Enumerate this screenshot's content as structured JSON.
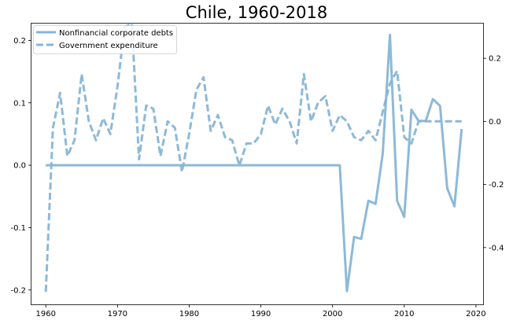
{
  "chart_data": {
    "type": "line",
    "title": "Chile, 1960-2018",
    "colors": {
      "series": "#87b5d6",
      "axes": "#000000",
      "background": "#ffffff"
    },
    "grid": false,
    "legend_position": "top-left",
    "x_axis": {
      "ticks": [
        1960,
        1970,
        1980,
        1990,
        2000,
        2010,
        2020
      ],
      "tick_labels": [
        "1960",
        "1970",
        "1980",
        "1990",
        "2000",
        "2010",
        "2020"
      ],
      "range": [
        1958,
        2021
      ]
    },
    "y_left": {
      "ticks": [
        -0.2,
        -0.1,
        0.0,
        0.1,
        0.2
      ],
      "tick_labels": [
        "-0.2",
        "-0.1",
        "0.0",
        "0.1",
        "0.2"
      ],
      "range": [
        -0.223,
        0.227
      ]
    },
    "y_right": {
      "ticks": [
        -0.4,
        -0.2,
        0.0,
        0.2
      ],
      "tick_labels": [
        "-0.4",
        "-0.2",
        "0.0",
        "0.2"
      ],
      "range": [
        -0.58,
        0.31
      ]
    },
    "series": [
      {
        "name": "Nonfinancial corporate debts",
        "axis": "left",
        "style": "solid",
        "points": [
          [
            1960,
            0
          ],
          [
            1961,
            0
          ],
          [
            1962,
            0
          ],
          [
            1963,
            0
          ],
          [
            1964,
            0
          ],
          [
            1965,
            0
          ],
          [
            1966,
            0
          ],
          [
            1967,
            0
          ],
          [
            1968,
            0
          ],
          [
            1969,
            0
          ],
          [
            1970,
            0
          ],
          [
            1971,
            0
          ],
          [
            1972,
            0
          ],
          [
            1973,
            0
          ],
          [
            1974,
            0
          ],
          [
            1975,
            0
          ],
          [
            1976,
            0
          ],
          [
            1977,
            0
          ],
          [
            1978,
            0
          ],
          [
            1979,
            0
          ],
          [
            1980,
            0
          ],
          [
            1981,
            0
          ],
          [
            1982,
            0
          ],
          [
            1983,
            0
          ],
          [
            1984,
            0
          ],
          [
            1985,
            0
          ],
          [
            1986,
            0
          ],
          [
            1987,
            0
          ],
          [
            1988,
            0
          ],
          [
            1989,
            0
          ],
          [
            1990,
            0
          ],
          [
            1991,
            0
          ],
          [
            1992,
            0
          ],
          [
            1993,
            0
          ],
          [
            1994,
            0
          ],
          [
            1995,
            0
          ],
          [
            1996,
            0
          ],
          [
            1997,
            0
          ],
          [
            1998,
            0
          ],
          [
            1999,
            0
          ],
          [
            2000,
            0
          ],
          [
            2001,
            0
          ],
          [
            2002,
            -0.202
          ],
          [
            2003,
            -0.115
          ],
          [
            2004,
            -0.118
          ],
          [
            2005,
            -0.057
          ],
          [
            2006,
            -0.062
          ],
          [
            2007,
            0.018
          ],
          [
            2008,
            0.209
          ],
          [
            2009,
            -0.057
          ],
          [
            2010,
            -0.083
          ],
          [
            2011,
            0.089
          ],
          [
            2012,
            0.071
          ],
          [
            2013,
            0.071
          ],
          [
            2014,
            0.106
          ],
          [
            2015,
            0.095
          ],
          [
            2016,
            -0.037
          ],
          [
            2017,
            -0.066
          ],
          [
            2018,
            0.058
          ]
        ]
      },
      {
        "name": "Government expenditure",
        "axis": "right",
        "style": "dashed",
        "points": [
          [
            1960,
            -0.54
          ],
          [
            1961,
            -0.02
          ],
          [
            1962,
            0.09
          ],
          [
            1963,
            -0.11
          ],
          [
            1964,
            -0.06
          ],
          [
            1965,
            0.15
          ],
          [
            1966,
            0.0
          ],
          [
            1967,
            -0.06
          ],
          [
            1968,
            0.01
          ],
          [
            1969,
            -0.04
          ],
          [
            1970,
            0.11
          ],
          [
            1971,
            0.3
          ],
          [
            1972,
            0.31
          ],
          [
            1973,
            -0.12
          ],
          [
            1974,
            0.05
          ],
          [
            1975,
            0.04
          ],
          [
            1976,
            -0.11
          ],
          [
            1977,
            0.0
          ],
          [
            1978,
            -0.02
          ],
          [
            1979,
            -0.16
          ],
          [
            1980,
            -0.04
          ],
          [
            1981,
            0.1
          ],
          [
            1982,
            0.14
          ],
          [
            1983,
            -0.03
          ],
          [
            1984,
            0.02
          ],
          [
            1985,
            -0.05
          ],
          [
            1986,
            -0.06
          ],
          [
            1987,
            -0.14
          ],
          [
            1988,
            -0.07
          ],
          [
            1989,
            -0.07
          ],
          [
            1990,
            -0.04
          ],
          [
            1991,
            0.05
          ],
          [
            1992,
            -0.01
          ],
          [
            1993,
            0.04
          ],
          [
            1994,
            0.0
          ],
          [
            1995,
            -0.07
          ],
          [
            1996,
            0.15
          ],
          [
            1997,
            0.0
          ],
          [
            1998,
            0.06
          ],
          [
            1999,
            0.08
          ],
          [
            2000,
            -0.03
          ],
          [
            2001,
            0.02
          ],
          [
            2002,
            0.0
          ],
          [
            2003,
            -0.05
          ],
          [
            2004,
            -0.06
          ],
          [
            2005,
            -0.03
          ],
          [
            2006,
            -0.06
          ],
          [
            2007,
            0.03
          ],
          [
            2008,
            0.12
          ],
          [
            2009,
            0.16
          ],
          [
            2010,
            -0.05
          ],
          [
            2011,
            -0.07
          ],
          [
            2012,
            0.0
          ],
          [
            2013,
            0.0
          ],
          [
            2014,
            0.0
          ],
          [
            2015,
            0.0
          ],
          [
            2016,
            0.0
          ],
          [
            2017,
            0.0
          ],
          [
            2018,
            0.0
          ]
        ]
      }
    ]
  }
}
